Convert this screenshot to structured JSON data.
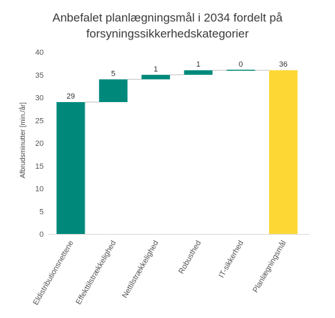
{
  "chart_data": {
    "type": "bar",
    "subtype": "waterfall",
    "title_lines": [
      "Anbefalet planlægningsmål i 2034 fordelt på",
      "forsyningssikkerhedskategorier"
    ],
    "ylabel": "Afbrudsminutter [min./år]",
    "ylim": [
      0,
      40
    ],
    "yticks": [
      0,
      5,
      10,
      15,
      20,
      25,
      30,
      35,
      40
    ],
    "grid": false,
    "legend": "none",
    "categories": [
      "Eldistributionsnettene",
      "Effekttilstrækkelighed",
      "Nettilstrækkelighed",
      "Robusthed",
      "IT-sikkerhed",
      "Planlægningsmål"
    ],
    "values": [
      29,
      5,
      1,
      1,
      0,
      36
    ],
    "labels": [
      "29",
      "5",
      "1",
      "1",
      "0",
      "36"
    ],
    "bar_kind": [
      "total",
      "increment",
      "increment",
      "increment",
      "increment",
      "total"
    ],
    "colors": {
      "teal": "#00897b",
      "yellow": "#fdd835",
      "axis": "#d9d9d9",
      "connector": "#bfbfbf"
    },
    "bar_colors": [
      "teal",
      "teal",
      "teal",
      "teal",
      "teal",
      "yellow"
    ]
  }
}
